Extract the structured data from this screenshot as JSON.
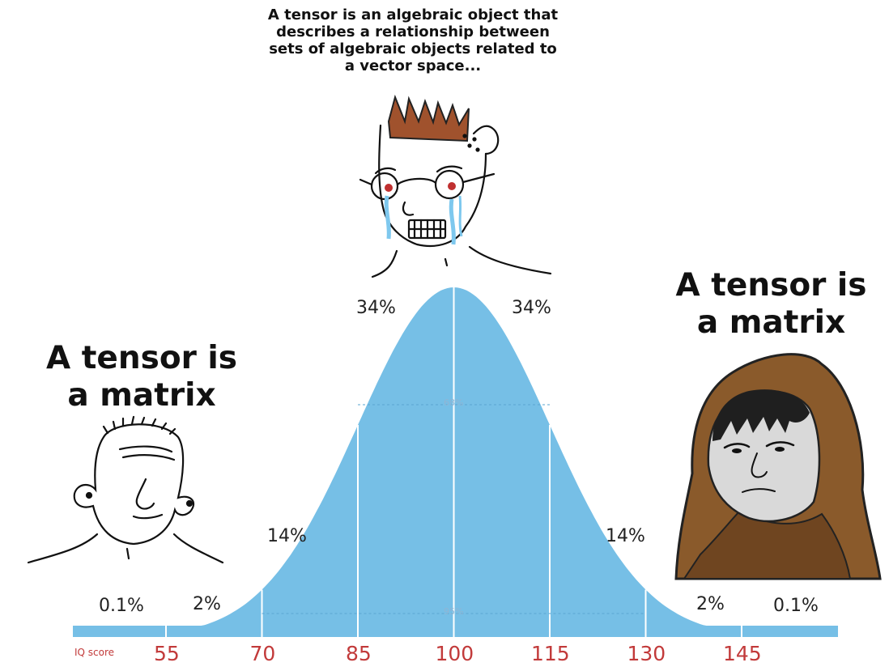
{
  "captions": {
    "top": "A tensor is an algebraic object that\ndescribes a  relationship between\nsets of algebraic objects related to\na vector space...",
    "left": "A tensor is\na matrix",
    "right": "A tensor is\na matrix"
  },
  "chart_data": {
    "type": "area",
    "title": "",
    "xlabel": "IQ score",
    "ylabel": "",
    "x_ticks": [
      55,
      70,
      85,
      100,
      115,
      130,
      145
    ],
    "mean": 100,
    "sd": 15,
    "band_labels": [
      {
        "label": "0.1%",
        "x": 50
      },
      {
        "label": "2%",
        "x": 62.5
      },
      {
        "label": "14%",
        "x": 77.5
      },
      {
        "label": "34%",
        "x": 92.5
      },
      {
        "label": "34%",
        "x": 107.5
      },
      {
        "label": "14%",
        "x": 122.5
      },
      {
        "label": "2%",
        "x": 137.5
      },
      {
        "label": "0.1%",
        "x": 150
      }
    ],
    "range_labels": [
      "68%",
      "95%"
    ],
    "fill_color": "#76bfe6",
    "tick_color": "#c23a3a",
    "grid": false,
    "legend": "none"
  },
  "characters": {
    "left": "wojak-simple",
    "middle": "wojak-crying-glasses",
    "right": "hooded-monk"
  }
}
